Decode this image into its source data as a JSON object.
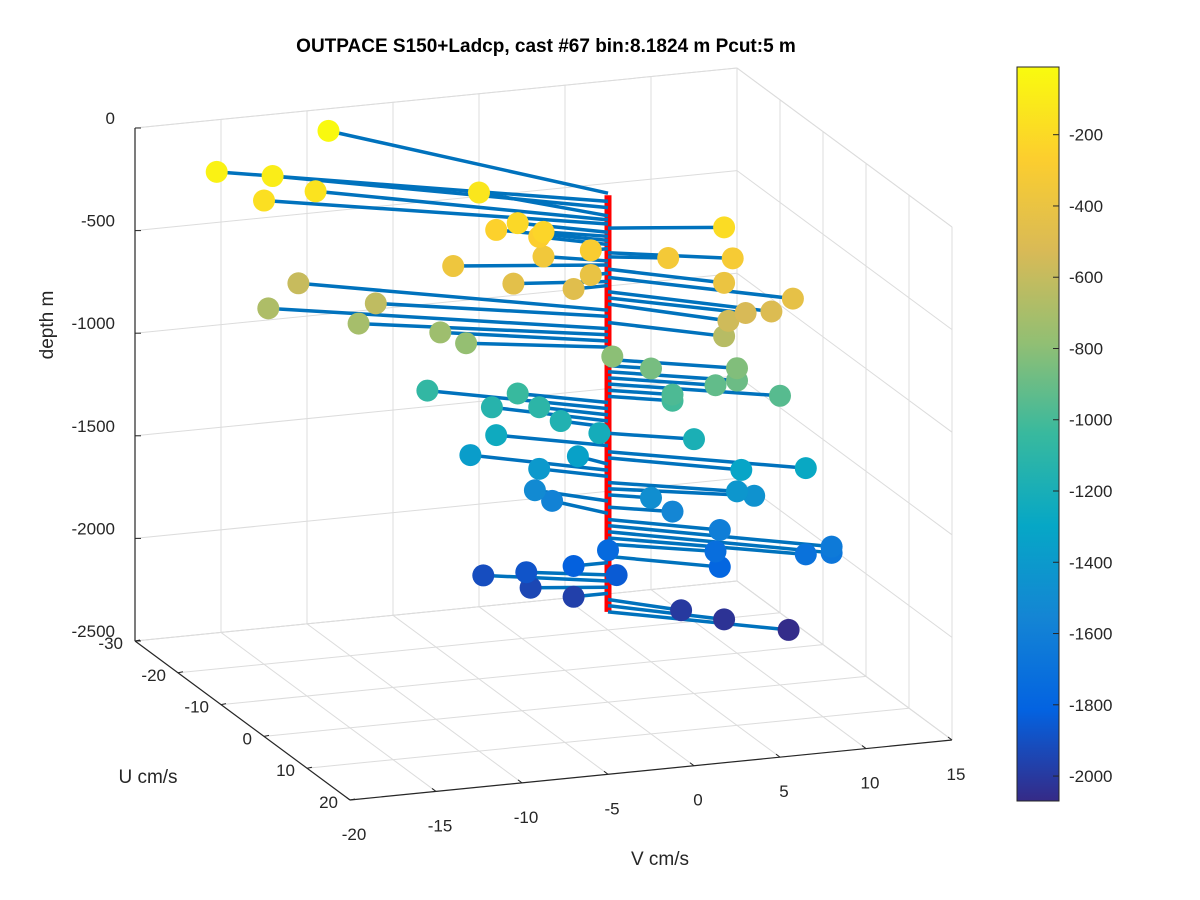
{
  "window": {
    "background": "#ffffff"
  },
  "chart_data": {
    "type": "scatter",
    "subtype": "3d-stem-profile",
    "title": "OUTPACE S150+Ladcp, cast #67 bin:8.1824 m  Pcut:5 m",
    "xlabel": "V cm/s",
    "ylabel": "U cm/s",
    "zlabel": "depth m",
    "xlim": [
      -20,
      15
    ],
    "ylim": [
      -30,
      20
    ],
    "zlim": [
      -2500,
      0
    ],
    "xticks": [
      -20,
      -15,
      -10,
      -5,
      0,
      5,
      10,
      15
    ],
    "yticks": [
      -30,
      -20,
      -10,
      0,
      10,
      20
    ],
    "zticks": [
      0,
      -500,
      -1000,
      -1500,
      -2000,
      -2500
    ],
    "grid": true,
    "view": "3d",
    "colormap": "parula",
    "colorbar": {
      "ticks": [
        -200,
        -400,
        -600,
        -800,
        -1000,
        -1200,
        -1400,
        -1600,
        -1800,
        -2000
      ],
      "clim": [
        -2070,
        -10
      ],
      "placement": "right"
    },
    "colors": {
      "stem_line": "#0072BD",
      "axis_line": "#ff0000",
      "grid": "#dcdcdc"
    },
    "series": [
      {
        "depth": [
          -20,
          -60,
          -90,
          -130,
          -150,
          -170,
          -190,
          -210,
          -230,
          -250,
          -270,
          -290,
          -310,
          -330,
          -350,
          -370,
          -390,
          -410,
          -430,
          -450,
          -470,
          -500,
          -530,
          -560,
          -590,
          -620,
          -650,
          -680,
          -710,
          -740,
          -770,
          -800,
          -830,
          -860,
          -890,
          -920,
          -950,
          -980,
          -1010,
          -1040,
          -1070,
          -1100,
          -1130,
          -1160,
          -1190,
          -1220,
          -1250,
          -1280,
          -1310,
          -1340,
          -1370,
          -1400,
          -1430,
          -1460,
          -1490,
          -1520,
          -1550,
          -1580,
          -1610,
          -1640,
          -1670,
          -1700,
          -1730,
          -1760,
          -1790,
          -1820,
          -1850,
          -1880,
          -1910,
          -1940,
          -1970,
          -2000,
          -2030,
          -2060
        ],
        "u": [
          -25,
          -19,
          -18,
          -10,
          -16,
          -16,
          3,
          -5,
          -3,
          -6,
          -4,
          0,
          5,
          2,
          -3,
          -4,
          7,
          0,
          11,
          -2,
          0,
          10,
          8,
          8,
          -16,
          -10,
          7,
          -15,
          -10,
          -7,
          -5,
          1,
          6,
          2,
          6,
          5,
          8,
          3,
          3,
          -5,
          -10,
          -4,
          -7,
          -3,
          4,
          -2,
          -6,
          10,
          7,
          -3,
          -8,
          -4,
          6,
          6,
          2,
          -5,
          3,
          -5,
          6,
          12,
          12,
          10,
          5,
          0,
          6,
          0,
          2,
          -3,
          -5,
          -2,
          0,
          5,
          7,
          10
        ],
        "v": [
          -10,
          -18,
          -15,
          -5,
          -13,
          -16,
          6,
          -4,
          -3,
          -5,
          -3,
          -1,
          6,
          3,
          -3,
          -8,
          5,
          -1,
          8,
          -5,
          -2,
          7,
          6,
          5,
          -14,
          -11,
          5,
          -16,
          -12,
          -8,
          -7,
          0,
          6,
          2,
          6,
          5,
          8,
          3,
          3,
          -4,
          -8,
          -3,
          -5,
          -2,
          4,
          0,
          -5,
          9,
          6,
          -1,
          -6,
          -3,
          6,
          7,
          2,
          -3,
          3,
          -2,
          5,
          10,
          10,
          9,
          5,
          0,
          5,
          -2,
          0,
          -4,
          -6,
          -4,
          -2,
          3,
          5,
          8
        ]
      }
    ]
  }
}
